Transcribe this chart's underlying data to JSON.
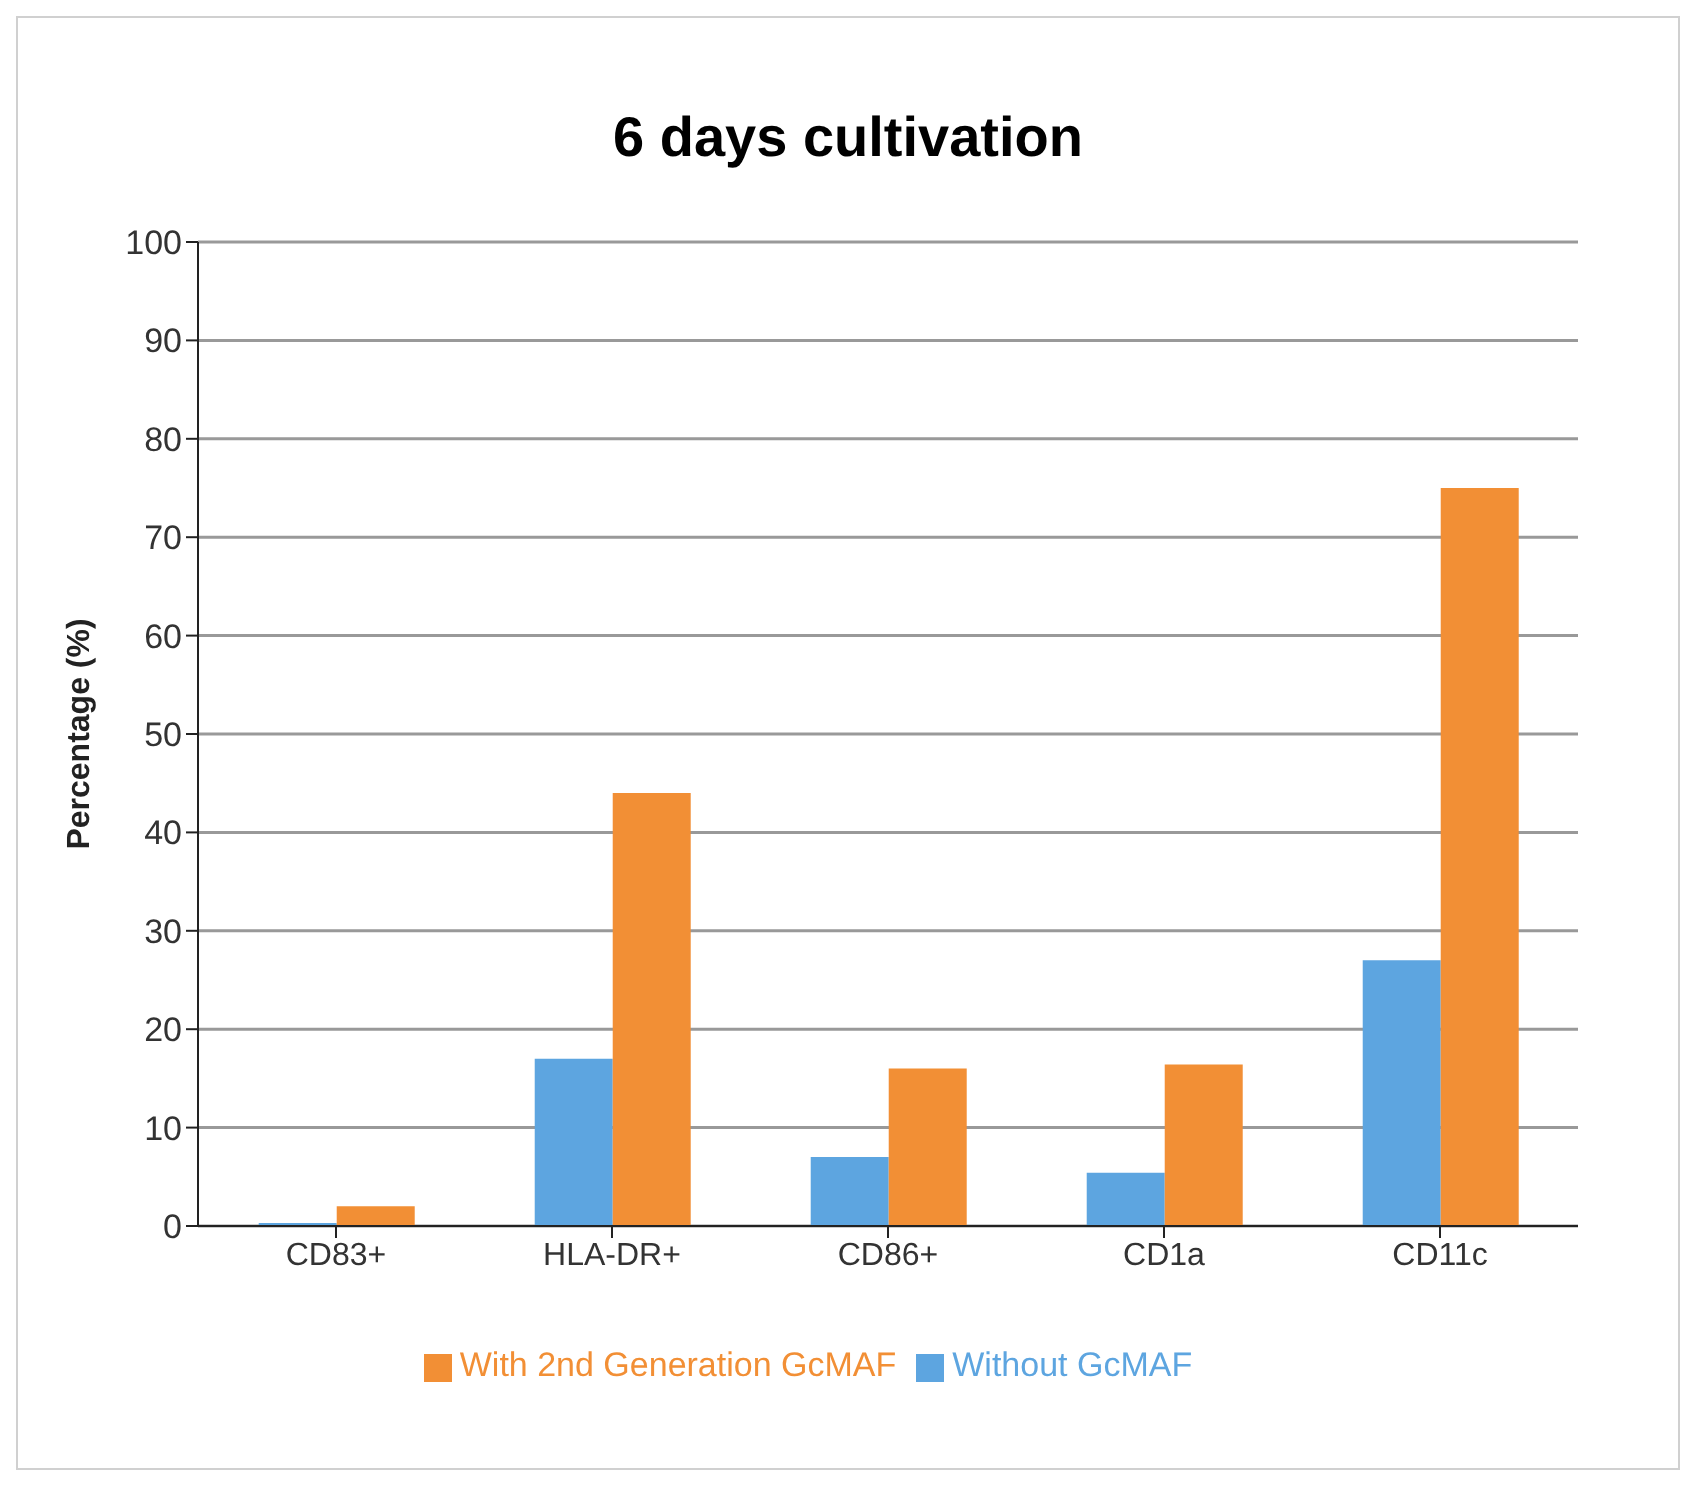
{
  "chart_data": {
    "type": "bar",
    "title": "6 days cultivation",
    "ylabel": "Percentage (%)",
    "categories": [
      "CD83+",
      "HLA-DR+",
      "CD86+",
      "CD1a",
      "CD11c"
    ],
    "series": [
      {
        "name": "Without GcMAF",
        "color": "#5da5e0",
        "values": [
          0.3,
          17,
          7,
          5.4,
          27
        ]
      },
      {
        "name": "With 2nd Generation GcMAF",
        "color": "#f28f35",
        "values": [
          2,
          44,
          16,
          16.4,
          75
        ]
      }
    ],
    "ylim": [
      0,
      100
    ],
    "yticks": [
      0,
      10,
      20,
      30,
      40,
      50,
      60,
      70,
      80,
      90,
      100
    ],
    "grid": "y",
    "legend": "bottom"
  }
}
